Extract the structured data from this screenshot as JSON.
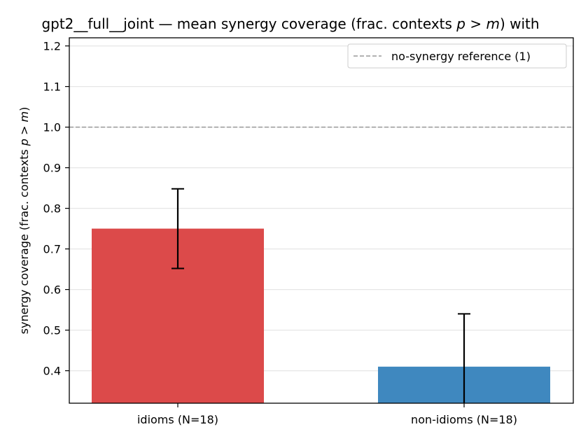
{
  "chart_data": {
    "type": "bar",
    "title_parts": [
      "gpt2__full__joint — mean synergy coverage  (frac. contexts ",
      "p",
      " > ",
      "m",
      ") with"
    ],
    "ylabel_parts": [
      "synergy coverage  (frac. contexts ",
      "p",
      " > ",
      "m",
      ")"
    ],
    "xlabel": "",
    "categories": [
      "idioms (N=18)",
      "non-idioms (N=18)"
    ],
    "values": [
      0.75,
      0.41
    ],
    "error_bars": [
      {
        "low": 0.652,
        "high": 0.848
      },
      {
        "low": 0.28,
        "high": 0.54
      }
    ],
    "colors": [
      "#dc4a4a",
      "#3f88bf"
    ],
    "ylim": [
      0.32,
      1.22
    ],
    "yticks": [
      0.4,
      0.5,
      0.6,
      0.7,
      0.8,
      0.9,
      1.0,
      1.1,
      1.2
    ],
    "ytick_labels": [
      "0.4",
      "0.5",
      "0.6",
      "0.7",
      "0.8",
      "0.9",
      "1.0",
      "1.1",
      "1.2"
    ],
    "reference_line": {
      "value": 1.0,
      "label": "no-synergy reference (1)",
      "color": "#999999",
      "style": "dashed"
    },
    "grid": {
      "y": true,
      "x": false
    },
    "legend_position": "top-right"
  }
}
